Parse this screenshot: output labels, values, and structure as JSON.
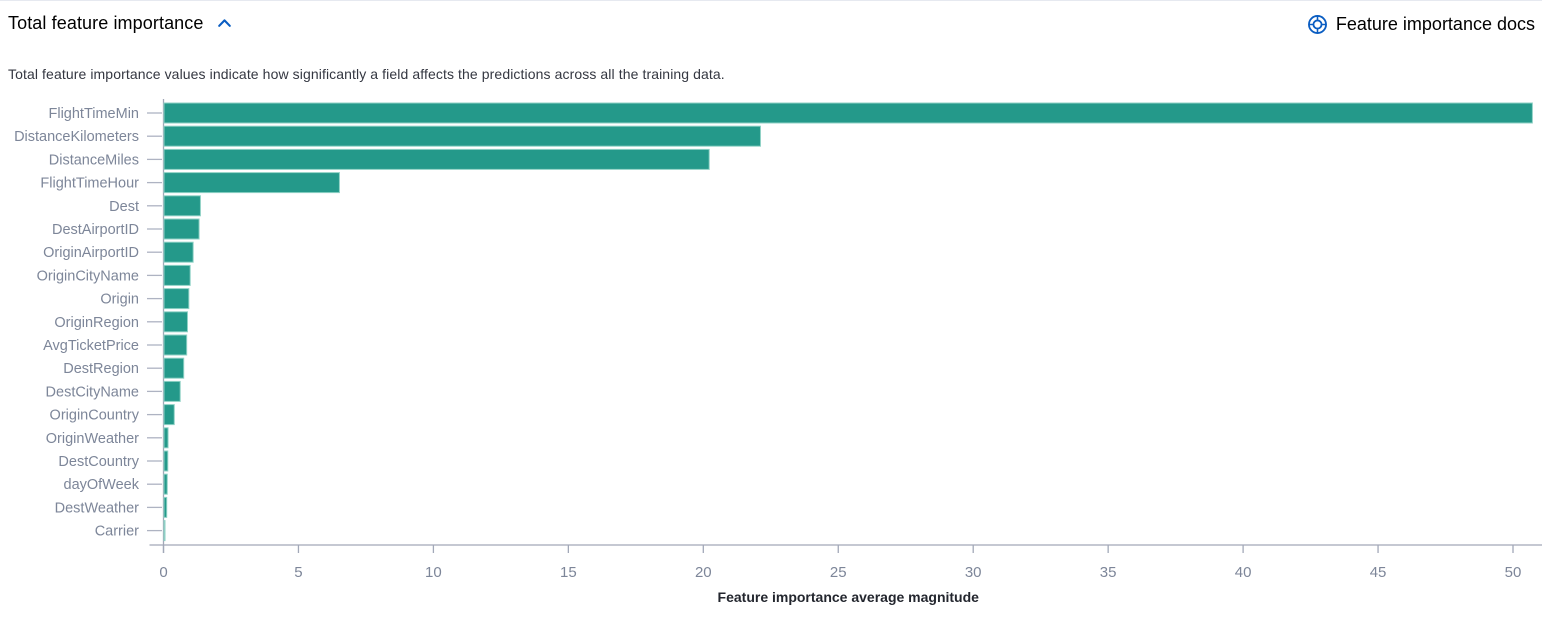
{
  "header": {
    "title": "Total feature importance",
    "docs_link_label": "Feature importance docs"
  },
  "description": "Total feature importance values indicate how significantly a field affects the predictions across all the training data.",
  "colors": {
    "accent_blue": "#0a5dc2",
    "bar_fill": "#24998a",
    "bar_border": "#8fd1c5",
    "axis_text": "#7d8699",
    "axis_line": "#a2a8b8",
    "y_tick": "#aeb3c2",
    "axis_title_text": "#23262e"
  },
  "chart_data": {
    "type": "bar",
    "orientation": "horizontal",
    "title": "Total feature importance",
    "xlabel": "Feature importance average magnitude",
    "ylabel": "",
    "categories": [
      "FlightTimeMin",
      "DistanceKilometers",
      "DistanceMiles",
      "FlightTimeHour",
      "Dest",
      "DestAirportID",
      "OriginAirportID",
      "OriginCityName",
      "Origin",
      "OriginRegion",
      "AvgTicketPrice",
      "DestRegion",
      "DestCityName",
      "OriginCountry",
      "OriginWeather",
      "DestCountry",
      "dayOfWeek",
      "DestWeather",
      "Carrier"
    ],
    "values": [
      50.7,
      22.1,
      20.2,
      6.5,
      1.35,
      1.3,
      1.08,
      0.97,
      0.92,
      0.87,
      0.84,
      0.73,
      0.6,
      0.38,
      0.15,
      0.14,
      0.12,
      0.1,
      0.03
    ],
    "x_ticks": [
      0,
      5,
      10,
      15,
      20,
      25,
      30,
      35,
      40,
      45,
      50
    ],
    "xlim": [
      0,
      51
    ],
    "grid": false,
    "legend": "none"
  }
}
